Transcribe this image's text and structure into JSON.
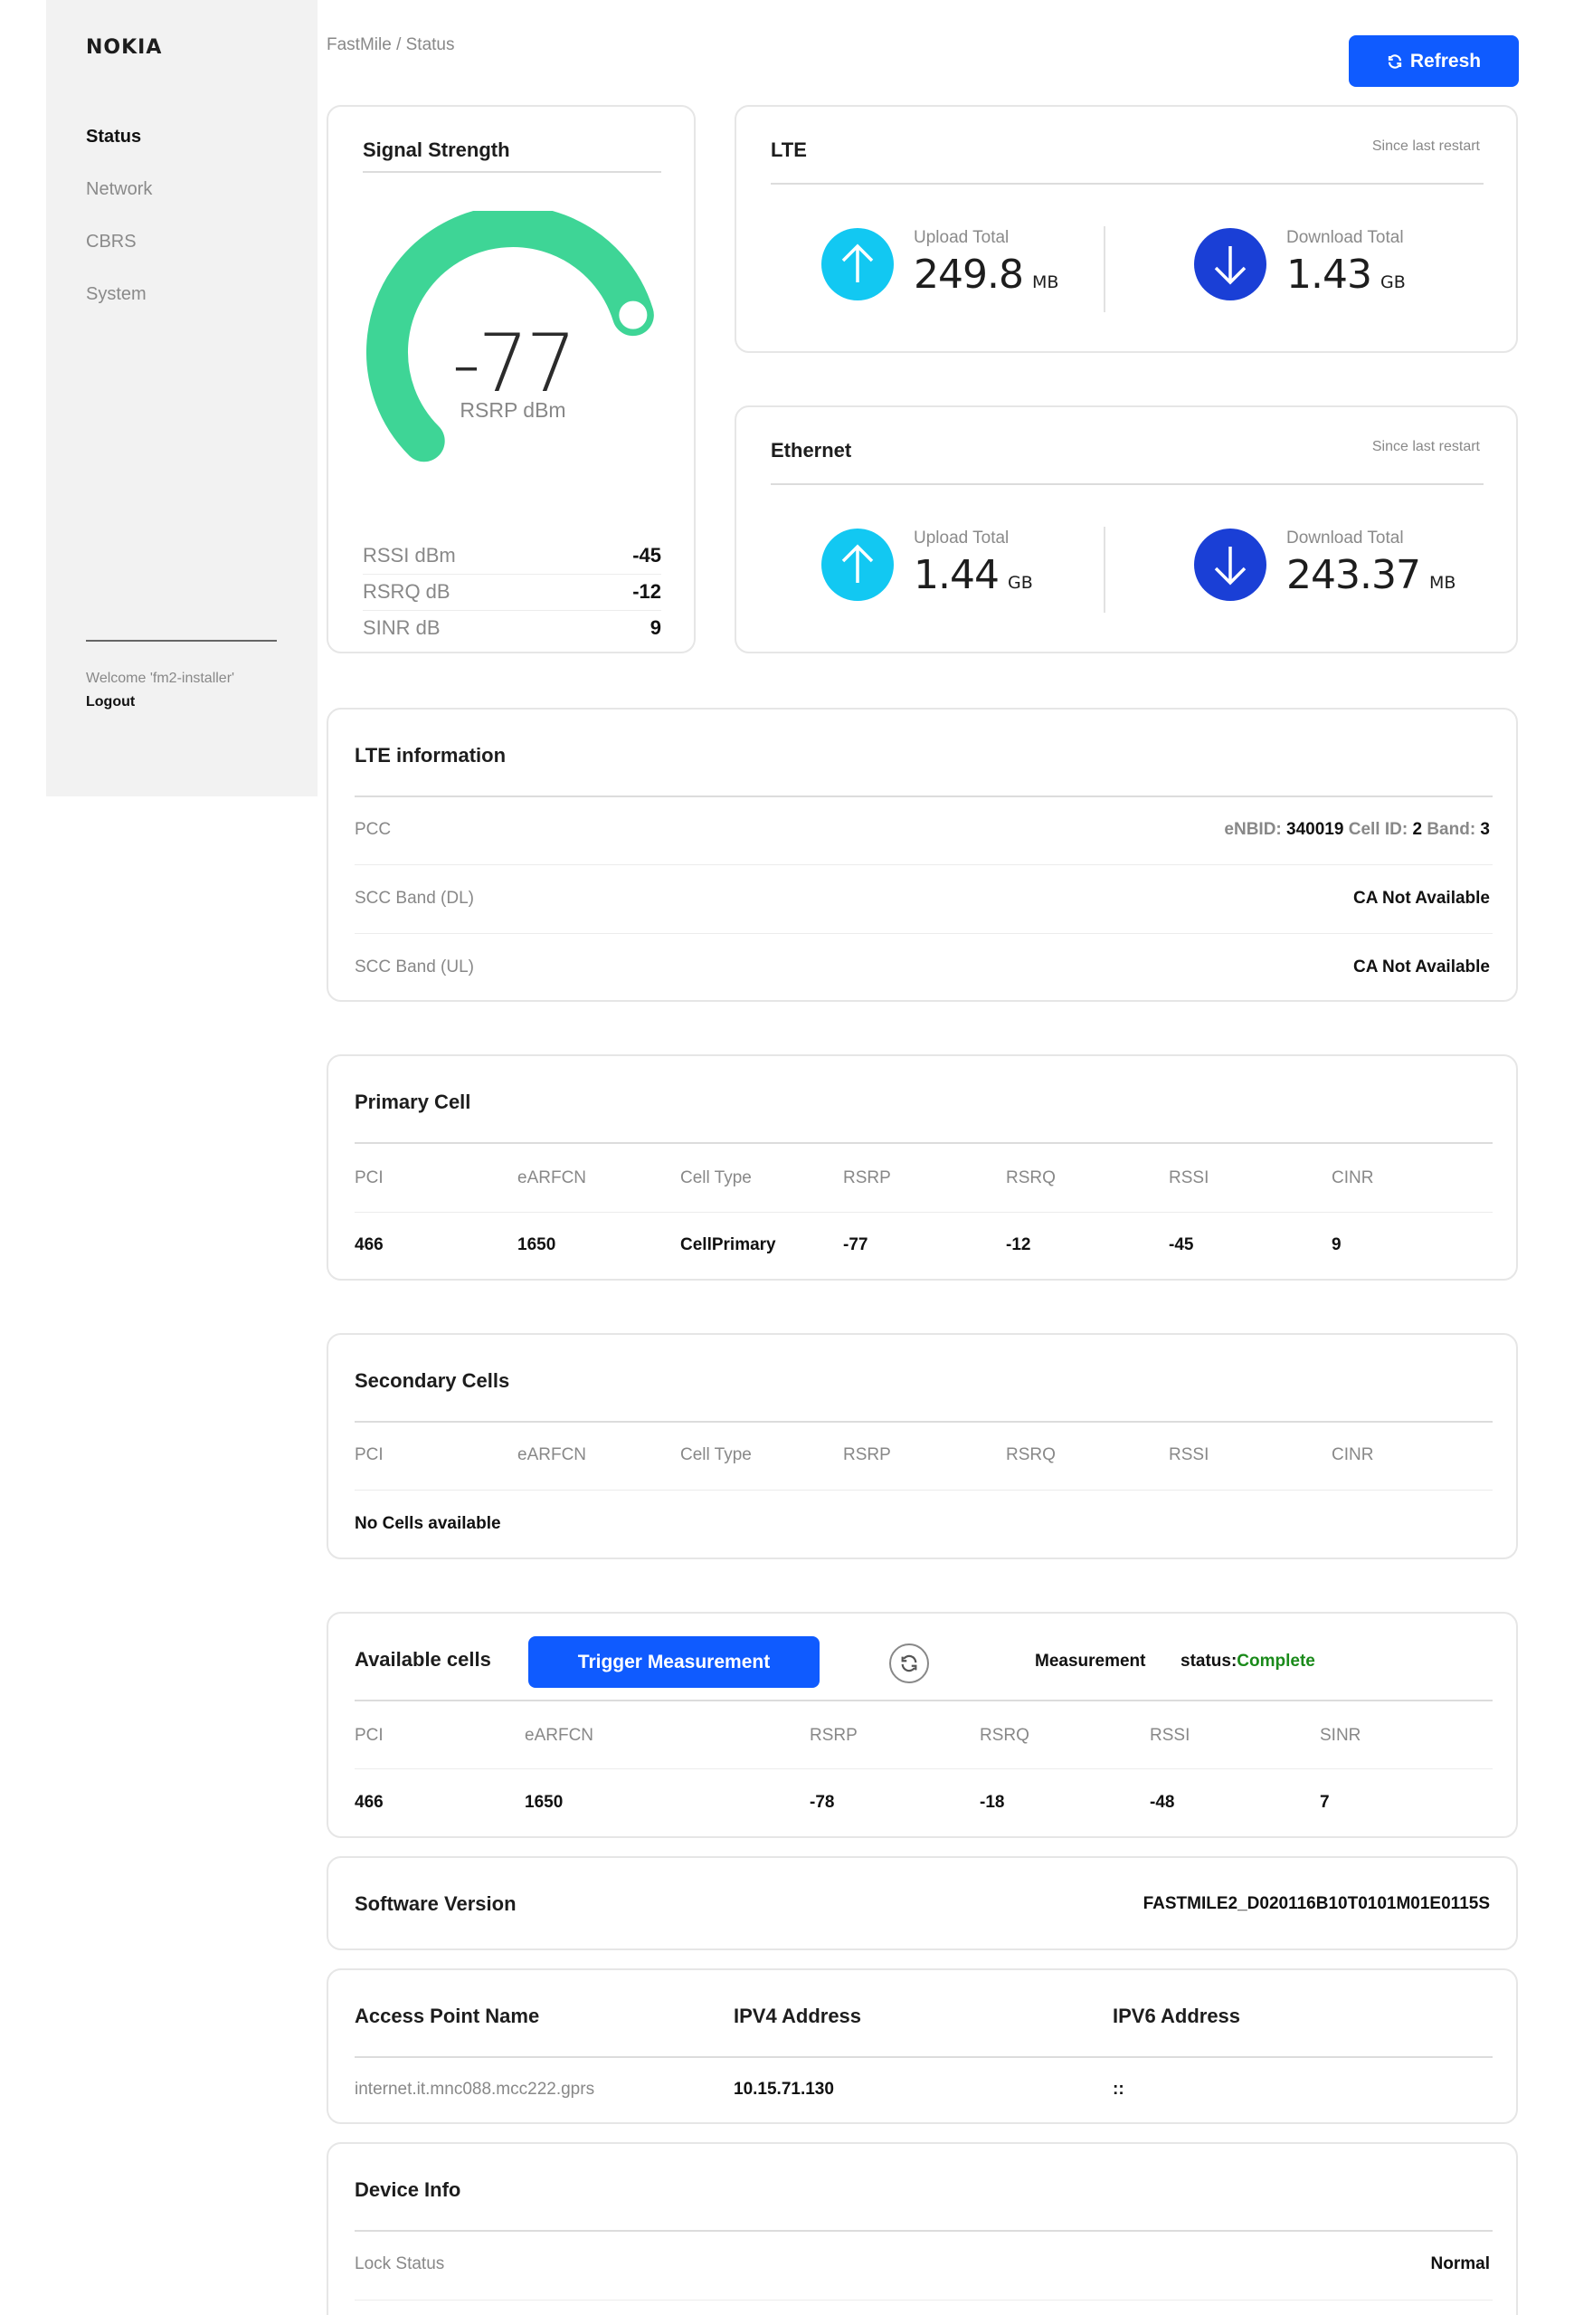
{
  "sidebar": {
    "logo": "NOKIA",
    "items": [
      {
        "label": "Status"
      },
      {
        "label": "Network"
      },
      {
        "label": "CBRS"
      },
      {
        "label": "System"
      }
    ],
    "welcome": "Welcome 'fm2-installer'",
    "logout": "Logout"
  },
  "header": {
    "breadcrumb": "FastMile / Status",
    "refresh_label": "Refresh"
  },
  "signal": {
    "title": "Signal Strength",
    "rsrp_value": "-77",
    "rsrp_unit": "RSRP dBm",
    "gauge_level": 0.77,
    "rows": [
      {
        "label": "RSSI dBm",
        "value": "-45"
      },
      {
        "label": "RSRQ dB",
        "value": "-12"
      },
      {
        "label": "SINR dB",
        "value": "9"
      }
    ]
  },
  "lte": {
    "title": "LTE",
    "since": "Since last restart",
    "upload_label": "Upload Total",
    "upload_value": "249.8",
    "upload_unit": "MB",
    "download_label": "Download Total",
    "download_value": "1.43",
    "download_unit": "GB"
  },
  "ethernet": {
    "title": "Ethernet",
    "since": "Since last restart",
    "upload_label": "Upload Total",
    "upload_value": "1.44",
    "upload_unit": "GB",
    "download_label": "Download Total",
    "download_value": "243.37",
    "download_unit": "MB"
  },
  "lte_info": {
    "title": "LTE information",
    "pcc_label": "PCC",
    "enbid_label": "eNBID:",
    "enbid_value": "340019",
    "cellid_label": "Cell ID:",
    "cellid_value": "2",
    "band_label": "Band:",
    "band_value": "3",
    "scc_dl_label": "SCC Band (DL)",
    "scc_dl_value": "CA Not Available",
    "scc_ul_label": "SCC Band (UL)",
    "scc_ul_value": "CA Not Available"
  },
  "primary_cell": {
    "title": "Primary Cell",
    "headers": [
      "PCI",
      "eARFCN",
      "Cell Type",
      "RSRP",
      "RSRQ",
      "RSSI",
      "CINR"
    ],
    "values": [
      "466",
      "1650",
      "CellPrimary",
      "-77",
      "-12",
      "-45",
      "9"
    ]
  },
  "secondary_cells": {
    "title": "Secondary Cells",
    "headers": [
      "PCI",
      "eARFCN",
      "Cell Type",
      "RSRP",
      "RSRQ",
      "RSSI",
      "CINR"
    ],
    "empty": "No Cells available"
  },
  "available_cells": {
    "title": "Available cells",
    "trigger_label": "Trigger Measurement",
    "measurement_label": "Measurement",
    "status_label": "status:",
    "status_value": "Complete",
    "headers": [
      "PCI",
      "eARFCN",
      "RSRP",
      "RSRQ",
      "RSSI",
      "SINR"
    ],
    "values": [
      "466",
      "1650",
      "-78",
      "-18",
      "-48",
      "7"
    ]
  },
  "software": {
    "title": "Software Version",
    "value": "FASTMILE2_D020116B10T0101M01E0115S"
  },
  "apn": {
    "apn_label": "Access Point Name",
    "ipv4_label": "IPV4 Address",
    "ipv6_label": "IPV6 Address",
    "apn_value": "internet.it.mnc088.mcc222.gprs",
    "ipv4_value": "10.15.71.130",
    "ipv6_value": "::"
  },
  "device_info": {
    "title": "Device Info",
    "lock_label": "Lock Status",
    "lock_value": "Normal"
  },
  "colors": {
    "accent": "#0f5bff",
    "gauge": "#3ed596",
    "upload": "#12c8f2",
    "download": "#1a3fd6",
    "complete": "#1a8a1a"
  }
}
